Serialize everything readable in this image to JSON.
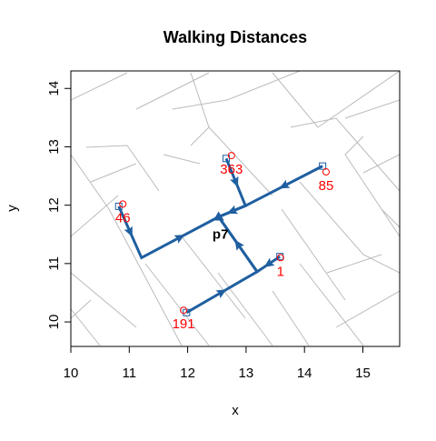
{
  "chart_data": {
    "type": "paths",
    "title": "Walking Distances",
    "x_label": "x",
    "y_label": "y",
    "xlim": [
      10,
      15.63
    ],
    "ylim": [
      9.58,
      14.3
    ],
    "xticks": [
      10,
      11,
      12,
      13,
      14,
      15
    ],
    "yticks": [
      10,
      11,
      12,
      13,
      14
    ],
    "point_color": "#ff0000",
    "path_color": "#1f5fa0",
    "origin": {
      "label": "p7",
      "x": 12.53,
      "y": 11.8
    },
    "points": [
      {
        "label": "46",
        "x": 10.89,
        "y": 12.02,
        "node_x": 10.82,
        "node_y": 11.98,
        "path_x": [
          10.82,
          11.21,
          12.53
        ],
        "path_y": [
          11.98,
          11.1,
          11.8
        ]
      },
      {
        "label": "363",
        "x": 12.75,
        "y": 12.85,
        "node_x": 12.66,
        "node_y": 12.8,
        "path_x": [
          12.66,
          12.99,
          12.53
        ],
        "path_y": [
          12.8,
          11.99,
          11.8
        ]
      },
      {
        "label": "85",
        "x": 14.37,
        "y": 12.57,
        "node_x": 14.31,
        "node_y": 12.67,
        "path_x": [
          14.31,
          12.99,
          12.53
        ],
        "path_y": [
          12.67,
          11.99,
          11.8
        ]
      },
      {
        "label": "1",
        "x": 13.59,
        "y": 11.1,
        "node_x": 13.58,
        "node_y": 11.12,
        "path_x": [
          13.58,
          13.19,
          12.53
        ],
        "path_y": [
          11.12,
          10.86,
          11.8
        ]
      },
      {
        "label": "191",
        "x": 11.93,
        "y": 10.2,
        "node_x": 11.98,
        "node_y": 10.16,
        "path_x": [
          11.98,
          13.19,
          12.53
        ],
        "path_y": [
          10.16,
          10.86,
          11.8
        ]
      }
    ]
  }
}
